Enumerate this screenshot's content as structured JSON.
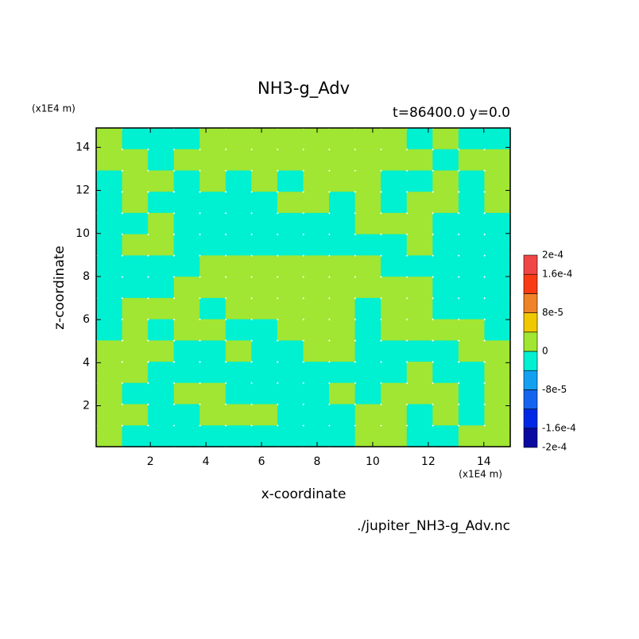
{
  "chart_data": {
    "type": "contour",
    "title": "NH3-g_Adv",
    "subtitle": "t=86400.0 y=0.0",
    "x_label": "x-coordinate",
    "y_label": "z-coordinate",
    "x_unit": "(x1E4 m)",
    "y_unit": "(x1E4 m)",
    "source": "./jupiter_NH3-g_Adv.nc",
    "xlim": [
      0.05,
      14.95
    ],
    "ylim": [
      0.1,
      14.9
    ],
    "xticks": [
      2,
      4,
      6,
      8,
      10,
      12,
      14
    ],
    "yticks": [
      2,
      4,
      6,
      8,
      10,
      12,
      14
    ],
    "values": [
      [
        2e-05,
        -2e-05,
        -2e-05,
        -2e-05,
        2e-05,
        2e-05,
        2e-05,
        2e-05,
        2e-05,
        2e-05,
        2e-05,
        2e-05,
        -2e-05,
        2e-05,
        -2e-05,
        -2e-05
      ],
      [
        2e-05,
        2e-05,
        -2e-05,
        2e-05,
        2e-05,
        2e-05,
        2e-05,
        2e-05,
        2e-05,
        2e-05,
        2e-05,
        2e-05,
        2e-05,
        -2e-05,
        2e-05,
        2e-05
      ],
      [
        -2e-05,
        2e-05,
        2e-05,
        -2e-05,
        2e-05,
        -2e-05,
        2e-05,
        -2e-05,
        2e-05,
        2e-05,
        2e-05,
        -2e-05,
        -2e-05,
        2e-05,
        -2e-05,
        2e-05
      ],
      [
        -2e-05,
        2e-05,
        -2e-05,
        -2e-05,
        -2e-05,
        -2e-05,
        -2e-05,
        2e-05,
        2e-05,
        -2e-05,
        2e-05,
        -2e-05,
        2e-05,
        2e-05,
        -2e-05,
        2e-05
      ],
      [
        -2e-05,
        -2e-05,
        2e-05,
        -2e-05,
        -2e-05,
        -2e-05,
        -2e-05,
        -2e-05,
        -2e-05,
        -2e-05,
        2e-05,
        2e-05,
        2e-05,
        -2e-05,
        -2e-05,
        -2e-05
      ],
      [
        -2e-05,
        2e-05,
        2e-05,
        -2e-05,
        -2e-05,
        -2e-05,
        -2e-05,
        -2e-05,
        -2e-05,
        -2e-05,
        -2e-05,
        -2e-05,
        2e-05,
        -2e-05,
        -2e-05,
        -2e-05
      ],
      [
        -2e-05,
        -2e-05,
        -2e-05,
        -2e-05,
        2e-05,
        2e-05,
        2e-05,
        2e-05,
        2e-05,
        2e-05,
        2e-05,
        -2e-05,
        -2e-05,
        -2e-05,
        -2e-05,
        -2e-05
      ],
      [
        -2e-05,
        -2e-05,
        -2e-05,
        2e-05,
        2e-05,
        2e-05,
        2e-05,
        2e-05,
        2e-05,
        2e-05,
        2e-05,
        2e-05,
        2e-05,
        -2e-05,
        -2e-05,
        -2e-05
      ],
      [
        -2e-05,
        2e-05,
        2e-05,
        2e-05,
        -2e-05,
        2e-05,
        2e-05,
        2e-05,
        2e-05,
        2e-05,
        -2e-05,
        2e-05,
        2e-05,
        -2e-05,
        -2e-05,
        -2e-05
      ],
      [
        -2e-05,
        2e-05,
        -2e-05,
        2e-05,
        2e-05,
        -2e-05,
        -2e-05,
        2e-05,
        2e-05,
        2e-05,
        -2e-05,
        2e-05,
        2e-05,
        2e-05,
        2e-05,
        -2e-05
      ],
      [
        2e-05,
        2e-05,
        2e-05,
        -2e-05,
        -2e-05,
        2e-05,
        -2e-05,
        -2e-05,
        2e-05,
        2e-05,
        -2e-05,
        -2e-05,
        -2e-05,
        -2e-05,
        2e-05,
        2e-05
      ],
      [
        2e-05,
        2e-05,
        -2e-05,
        -2e-05,
        -2e-05,
        -2e-05,
        -2e-05,
        -2e-05,
        -2e-05,
        -2e-05,
        -2e-05,
        -2e-05,
        2e-05,
        -2e-05,
        -2e-05,
        2e-05
      ],
      [
        2e-05,
        -2e-05,
        -2e-05,
        2e-05,
        2e-05,
        -2e-05,
        -2e-05,
        -2e-05,
        -2e-05,
        2e-05,
        -2e-05,
        2e-05,
        2e-05,
        2e-05,
        -2e-05,
        2e-05
      ],
      [
        2e-05,
        2e-05,
        -2e-05,
        -2e-05,
        2e-05,
        2e-05,
        2e-05,
        -2e-05,
        -2e-05,
        -2e-05,
        2e-05,
        2e-05,
        -2e-05,
        2e-05,
        -2e-05,
        2e-05
      ],
      [
        2e-05,
        -2e-05,
        -2e-05,
        -2e-05,
        -2e-05,
        -2e-05,
        -2e-05,
        -2e-05,
        -2e-05,
        -2e-05,
        2e-05,
        2e-05,
        -2e-05,
        -2e-05,
        2e-05,
        2e-05
      ]
    ],
    "colorbar": {
      "levels": [
        -0.0002,
        -0.00016,
        -0.00012,
        -8e-05,
        -4e-05,
        0,
        4e-05,
        8e-05,
        0.00012,
        0.00016,
        0.0002
      ],
      "colors": [
        "#0a0aa0",
        "#0028e6",
        "#1464f0",
        "#14a0f0",
        "#00f0d2",
        "#a0e632",
        "#f0c800",
        "#f08228",
        "#fa3c14",
        "#f04646"
      ],
      "labels": [
        {
          "value": 0.0002,
          "label": "2e-4"
        },
        {
          "value": 0.00016,
          "label": "1.6e-4"
        },
        {
          "value": 8e-05,
          "label": "8e-5"
        },
        0,
        {
          "value": -8e-05,
          "label": "-8e-5"
        },
        {
          "value": -0.00016,
          "label": "-1.6e-4"
        },
        {
          "value": -0.0002,
          "label": "-2e-4"
        }
      ]
    }
  }
}
